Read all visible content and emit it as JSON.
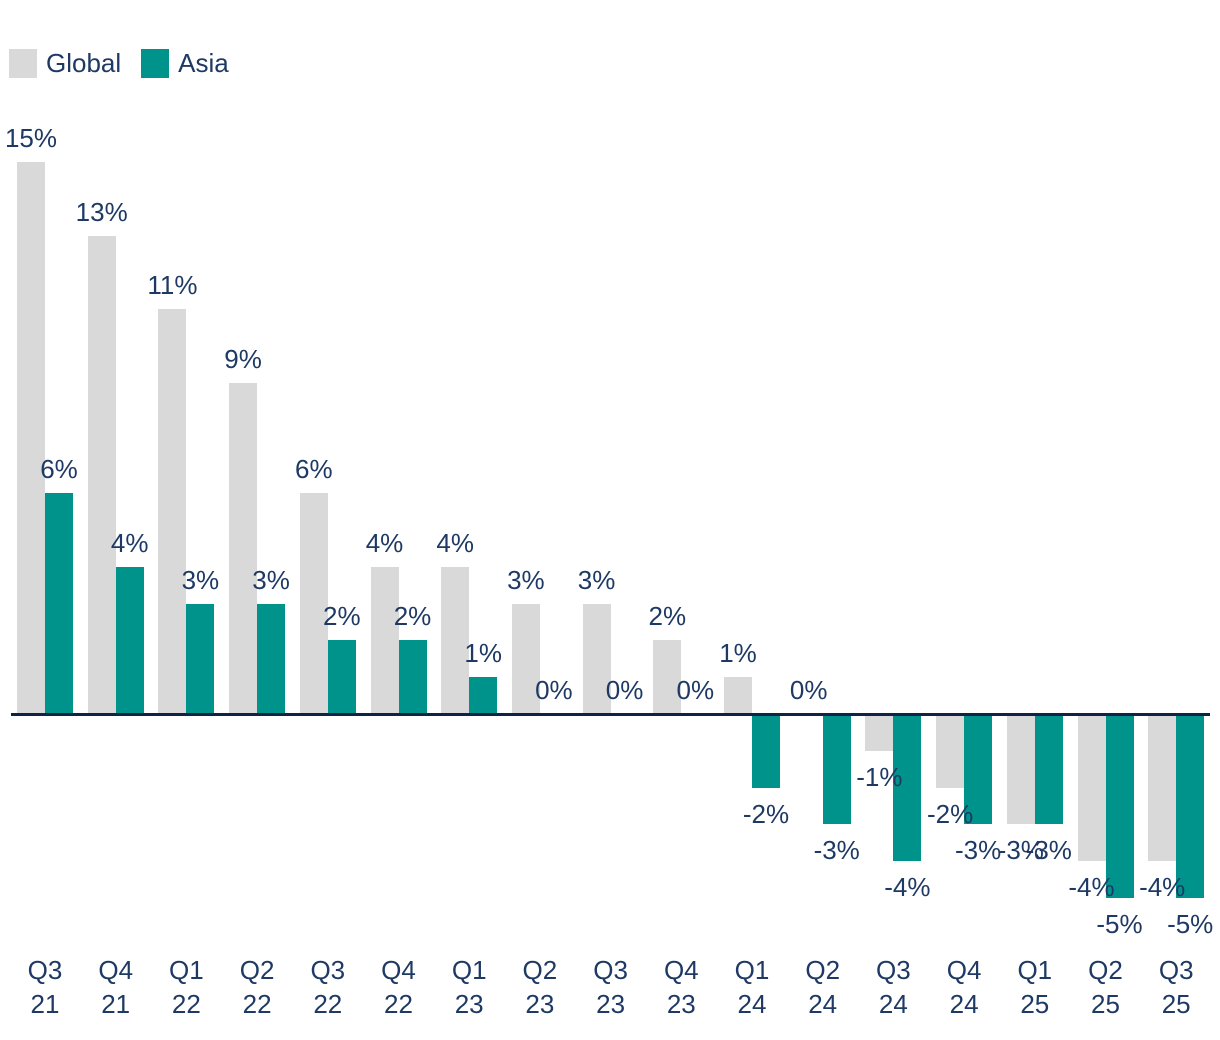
{
  "legend": {
    "items": [
      {
        "label": "Global",
        "color": "#D9D9D9"
      },
      {
        "label": "Asia",
        "color": "#00938C"
      }
    ]
  },
  "chart_data": {
    "type": "bar",
    "title": "",
    "xlabel": "",
    "ylabel": "",
    "value_suffix": "%",
    "categories": [
      "Q3 21",
      "Q4 21",
      "Q1 22",
      "Q2 22",
      "Q3 22",
      "Q4 22",
      "Q1 23",
      "Q2 23",
      "Q3 23",
      "Q4 23",
      "Q1 24",
      "Q2 24",
      "Q3 24",
      "Q4 24",
      "Q1 25",
      "Q2 25",
      "Q3 25"
    ],
    "series": [
      {
        "name": "Global",
        "color": "#D9D9D9",
        "values": [
          15,
          13,
          11,
          9,
          6,
          4,
          4,
          3,
          3,
          2,
          1,
          0,
          -1,
          -2,
          -3,
          -4,
          -4
        ]
      },
      {
        "name": "Asia",
        "color": "#00938C",
        "values": [
          6,
          4,
          3,
          3,
          2,
          2,
          1,
          0,
          0,
          0,
          -2,
          -3,
          -4,
          -3,
          -3,
          -5,
          -5
        ]
      }
    ],
    "ylim": [
      -5,
      15
    ],
    "grid": false,
    "legend_position": "top-left",
    "data_labels": true,
    "text_color": "#1E3A64",
    "axis_color": "#0D2444"
  }
}
